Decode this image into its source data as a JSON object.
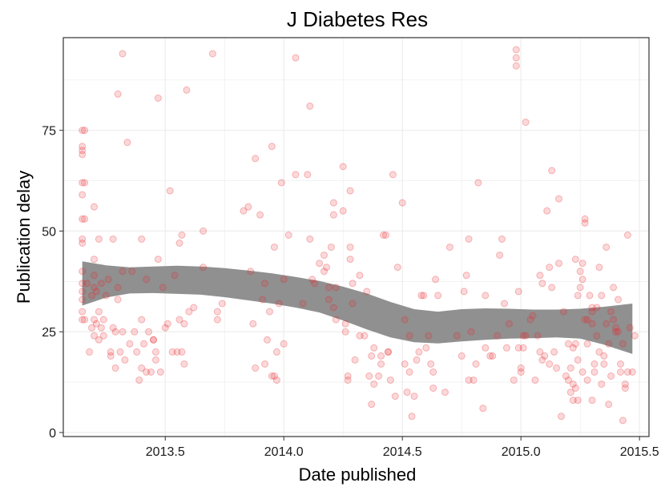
{
  "chart_data": {
    "type": "scatter",
    "title": "J Diabetes Res",
    "xlabel": "Date published",
    "ylabel": "Publication delay",
    "xlim": [
      2013.07,
      2015.54
    ],
    "ylim": [
      -1,
      98
    ],
    "x_ticks": [
      2013.5,
      2014.0,
      2014.5,
      2015.0,
      2015.5
    ],
    "x_tick_labels": [
      "2013.5",
      "2014.0",
      "2014.5",
      "2015.0",
      "2015.5"
    ],
    "y_ticks": [
      0,
      25,
      50,
      75
    ],
    "y_tick_labels": [
      "0",
      "25",
      "50",
      "75"
    ],
    "grid": true,
    "colors": {
      "points": "#e8262b",
      "ribbon": "#8a8a8a",
      "grid": "#ebebeb",
      "panel_border": "#333333"
    },
    "points": [
      [
        2013.15,
        75
      ],
      [
        2013.15,
        71
      ],
      [
        2013.15,
        70
      ],
      [
        2013.15,
        69
      ],
      [
        2013.15,
        62
      ],
      [
        2013.15,
        59
      ],
      [
        2013.15,
        53
      ],
      [
        2013.15,
        48
      ],
      [
        2013.15,
        47
      ],
      [
        2013.15,
        40
      ],
      [
        2013.15,
        37
      ],
      [
        2013.15,
        35
      ],
      [
        2013.15,
        33
      ],
      [
        2013.15,
        30
      ],
      [
        2013.15,
        28
      ],
      [
        2013.16,
        75
      ],
      [
        2013.16,
        62
      ],
      [
        2013.16,
        53
      ],
      [
        2013.16,
        28
      ],
      [
        2013.17,
        37
      ],
      [
        2013.18,
        20
      ],
      [
        2013.19,
        34
      ],
      [
        2013.19,
        26
      ],
      [
        2013.2,
        56
      ],
      [
        2013.2,
        43
      ],
      [
        2013.2,
        39
      ],
      [
        2013.2,
        36
      ],
      [
        2013.2,
        28
      ],
      [
        2013.2,
        24
      ],
      [
        2013.21,
        35
      ],
      [
        2013.21,
        27
      ],
      [
        2013.22,
        48
      ],
      [
        2013.22,
        30
      ],
      [
        2013.22,
        23
      ],
      [
        2013.23,
        37
      ],
      [
        2013.23,
        26
      ],
      [
        2013.24,
        28
      ],
      [
        2013.24,
        24
      ],
      [
        2013.25,
        34
      ],
      [
        2013.26,
        38
      ],
      [
        2013.27,
        20
      ],
      [
        2013.27,
        19
      ],
      [
        2013.28,
        48
      ],
      [
        2013.28,
        26
      ],
      [
        2013.29,
        25
      ],
      [
        2013.29,
        16
      ],
      [
        2013.3,
        84
      ],
      [
        2013.3,
        36
      ],
      [
        2013.3,
        33
      ],
      [
        2013.31,
        20
      ],
      [
        2013.32,
        94
      ],
      [
        2013.32,
        40
      ],
      [
        2013.32,
        25
      ],
      [
        2013.33,
        18
      ],
      [
        2013.34,
        72
      ],
      [
        2013.35,
        22
      ],
      [
        2013.36,
        40
      ],
      [
        2013.37,
        25
      ],
      [
        2013.38,
        20
      ],
      [
        2013.39,
        13
      ],
      [
        2013.4,
        48
      ],
      [
        2013.4,
        28
      ],
      [
        2013.4,
        16
      ],
      [
        2013.41,
        22
      ],
      [
        2013.42,
        38
      ],
      [
        2013.42,
        15
      ],
      [
        2013.43,
        25
      ],
      [
        2013.44,
        15
      ],
      [
        2013.45,
        23
      ],
      [
        2013.45,
        23
      ],
      [
        2013.46,
        18
      ],
      [
        2013.46,
        20
      ],
      [
        2013.47,
        83
      ],
      [
        2013.47,
        43
      ],
      [
        2013.48,
        15
      ],
      [
        2013.49,
        36
      ],
      [
        2013.5,
        26
      ],
      [
        2013.51,
        27
      ],
      [
        2013.52,
        60
      ],
      [
        2013.53,
        20
      ],
      [
        2013.54,
        39
      ],
      [
        2013.55,
        20
      ],
      [
        2013.56,
        28
      ],
      [
        2013.56,
        47
      ],
      [
        2013.57,
        49
      ],
      [
        2013.57,
        20
      ],
      [
        2013.58,
        17
      ],
      [
        2013.58,
        27
      ],
      [
        2013.59,
        85
      ],
      [
        2013.6,
        30
      ],
      [
        2013.62,
        31
      ],
      [
        2013.66,
        50
      ],
      [
        2013.66,
        41
      ],
      [
        2013.7,
        94
      ],
      [
        2013.72,
        28
      ],
      [
        2013.72,
        30
      ],
      [
        2013.74,
        32
      ],
      [
        2013.83,
        55
      ],
      [
        2013.85,
        56
      ],
      [
        2013.86,
        40
      ],
      [
        2013.87,
        27
      ],
      [
        2013.88,
        16
      ],
      [
        2013.88,
        68
      ],
      [
        2013.9,
        54
      ],
      [
        2013.91,
        33
      ],
      [
        2013.92,
        17
      ],
      [
        2013.92,
        37
      ],
      [
        2013.93,
        23
      ],
      [
        2013.94,
        30
      ],
      [
        2013.95,
        71
      ],
      [
        2013.95,
        14
      ],
      [
        2013.96,
        46
      ],
      [
        2013.96,
        14
      ],
      [
        2013.97,
        20
      ],
      [
        2013.97,
        13
      ],
      [
        2013.98,
        32
      ],
      [
        2013.99,
        62
      ],
      [
        2014.0,
        22
      ],
      [
        2014.0,
        38
      ],
      [
        2014.02,
        49
      ],
      [
        2014.05,
        64
      ],
      [
        2014.05,
        93
      ],
      [
        2014.08,
        32
      ],
      [
        2014.1,
        64
      ],
      [
        2014.11,
        81
      ],
      [
        2014.11,
        48
      ],
      [
        2014.12,
        38
      ],
      [
        2014.13,
        37
      ],
      [
        2014.15,
        42
      ],
      [
        2014.17,
        40
      ],
      [
        2014.17,
        44
      ],
      [
        2014.18,
        41
      ],
      [
        2014.19,
        36
      ],
      [
        2014.19,
        33
      ],
      [
        2014.2,
        46
      ],
      [
        2014.21,
        54
      ],
      [
        2014.21,
        57
      ],
      [
        2014.21,
        31
      ],
      [
        2014.22,
        28
      ],
      [
        2014.22,
        36
      ],
      [
        2014.25,
        55
      ],
      [
        2014.25,
        66
      ],
      [
        2014.26,
        27
      ],
      [
        2014.26,
        25
      ],
      [
        2014.27,
        14
      ],
      [
        2014.27,
        13
      ],
      [
        2014.28,
        43
      ],
      [
        2014.28,
        60
      ],
      [
        2014.28,
        46
      ],
      [
        2014.29,
        32
      ],
      [
        2014.29,
        37
      ],
      [
        2014.3,
        18
      ],
      [
        2014.32,
        39
      ],
      [
        2014.32,
        24
      ],
      [
        2014.34,
        24
      ],
      [
        2014.35,
        35
      ],
      [
        2014.36,
        14
      ],
      [
        2014.37,
        19
      ],
      [
        2014.37,
        7
      ],
      [
        2014.38,
        21
      ],
      [
        2014.38,
        12
      ],
      [
        2014.4,
        14
      ],
      [
        2014.41,
        17
      ],
      [
        2014.41,
        19
      ],
      [
        2014.42,
        49
      ],
      [
        2014.43,
        49
      ],
      [
        2014.44,
        20
      ],
      [
        2014.44,
        20
      ],
      [
        2014.45,
        13
      ],
      [
        2014.46,
        64
      ],
      [
        2014.47,
        9
      ],
      [
        2014.48,
        41
      ],
      [
        2014.5,
        57
      ],
      [
        2014.51,
        28
      ],
      [
        2014.51,
        17
      ],
      [
        2014.52,
        10
      ],
      [
        2014.53,
        24
      ],
      [
        2014.53,
        15
      ],
      [
        2014.54,
        4
      ],
      [
        2014.55,
        9
      ],
      [
        2014.56,
        18
      ],
      [
        2014.57,
        20
      ],
      [
        2014.58,
        34
      ],
      [
        2014.59,
        34
      ],
      [
        2014.6,
        21
      ],
      [
        2014.61,
        24
      ],
      [
        2014.62,
        17
      ],
      [
        2014.63,
        15
      ],
      [
        2014.63,
        11
      ],
      [
        2014.64,
        38
      ],
      [
        2014.65,
        34
      ],
      [
        2014.68,
        10
      ],
      [
        2014.7,
        46
      ],
      [
        2014.73,
        24
      ],
      [
        2014.75,
        19
      ],
      [
        2014.76,
        35
      ],
      [
        2014.77,
        39
      ],
      [
        2014.78,
        48
      ],
      [
        2014.78,
        13
      ],
      [
        2014.79,
        25
      ],
      [
        2014.8,
        13
      ],
      [
        2014.81,
        17
      ],
      [
        2014.82,
        62
      ],
      [
        2014.84,
        6
      ],
      [
        2014.85,
        34
      ],
      [
        2014.85,
        21
      ],
      [
        2014.87,
        19
      ],
      [
        2014.88,
        19
      ],
      [
        2014.9,
        24
      ],
      [
        2014.91,
        44
      ],
      [
        2014.92,
        48
      ],
      [
        2014.93,
        32
      ],
      [
        2014.94,
        21
      ],
      [
        2014.95,
        27
      ],
      [
        2014.97,
        13
      ],
      [
        2014.98,
        95
      ],
      [
        2014.98,
        93
      ],
      [
        2014.98,
        91
      ],
      [
        2014.99,
        35
      ],
      [
        2014.99,
        21
      ],
      [
        2015.0,
        16
      ],
      [
        2015.0,
        15
      ],
      [
        2015.01,
        24
      ],
      [
        2015.01,
        21
      ],
      [
        2015.02,
        77
      ],
      [
        2015.02,
        24
      ],
      [
        2015.04,
        28
      ],
      [
        2015.05,
        29
      ],
      [
        2015.06,
        13
      ],
      [
        2015.07,
        24
      ],
      [
        2015.08,
        39
      ],
      [
        2015.08,
        20
      ],
      [
        2015.09,
        18
      ],
      [
        2015.09,
        37
      ],
      [
        2015.1,
        19
      ],
      [
        2015.11,
        55
      ],
      [
        2015.12,
        41
      ],
      [
        2015.12,
        17
      ],
      [
        2015.13,
        36
      ],
      [
        2015.13,
        65
      ],
      [
        2015.14,
        20
      ],
      [
        2015.15,
        16
      ],
      [
        2015.16,
        42
      ],
      [
        2015.16,
        58
      ],
      [
        2015.17,
        4
      ],
      [
        2015.18,
        30
      ],
      [
        2015.19,
        14
      ],
      [
        2015.2,
        22
      ],
      [
        2015.2,
        13
      ],
      [
        2015.21,
        16
      ],
      [
        2015.21,
        10
      ],
      [
        2015.22,
        8
      ],
      [
        2015.22,
        12
      ],
      [
        2015.22,
        21
      ],
      [
        2015.23,
        22
      ],
      [
        2015.23,
        11
      ],
      [
        2015.23,
        43
      ],
      [
        2015.24,
        34
      ],
      [
        2015.24,
        18
      ],
      [
        2015.24,
        8
      ],
      [
        2015.25,
        40
      ],
      [
        2015.25,
        36
      ],
      [
        2015.26,
        38
      ],
      [
        2015.26,
        42
      ],
      [
        2015.26,
        15
      ],
      [
        2015.27,
        52
      ],
      [
        2015.27,
        53
      ],
      [
        2015.27,
        28
      ],
      [
        2015.28,
        28
      ],
      [
        2015.28,
        22
      ],
      [
        2015.28,
        13
      ],
      [
        2015.29,
        34
      ],
      [
        2015.3,
        31
      ],
      [
        2015.3,
        30
      ],
      [
        2015.3,
        27
      ],
      [
        2015.3,
        8
      ],
      [
        2015.31,
        17
      ],
      [
        2015.31,
        15
      ],
      [
        2015.32,
        31
      ],
      [
        2015.32,
        24
      ],
      [
        2015.33,
        20
      ],
      [
        2015.33,
        41
      ],
      [
        2015.34,
        34
      ],
      [
        2015.34,
        12
      ],
      [
        2015.35,
        19
      ],
      [
        2015.35,
        17
      ],
      [
        2015.36,
        46
      ],
      [
        2015.36,
        27
      ],
      [
        2015.37,
        7
      ],
      [
        2015.37,
        22
      ],
      [
        2015.38,
        14
      ],
      [
        2015.38,
        30
      ],
      [
        2015.39,
        36
      ],
      [
        2015.39,
        28
      ],
      [
        2015.4,
        25
      ],
      [
        2015.4,
        26
      ],
      [
        2015.41,
        33
      ],
      [
        2015.41,
        25
      ],
      [
        2015.42,
        17
      ],
      [
        2015.42,
        15
      ],
      [
        2015.43,
        22
      ],
      [
        2015.43,
        3
      ],
      [
        2015.44,
        11
      ],
      [
        2015.44,
        12
      ],
      [
        2015.45,
        15
      ],
      [
        2015.45,
        49
      ],
      [
        2015.46,
        26
      ],
      [
        2015.47,
        15
      ],
      [
        2015.48,
        24
      ]
    ],
    "smooth": {
      "x": [
        2013.15,
        2013.25,
        2013.35,
        2013.45,
        2013.55,
        2013.65,
        2013.75,
        2013.85,
        2013.95,
        2014.05,
        2014.15,
        2014.25,
        2014.35,
        2014.45,
        2014.55,
        2014.65,
        2014.75,
        2014.85,
        2014.95,
        2015.05,
        2015.15,
        2015.25,
        2015.35,
        2015.47
      ],
      "upper": [
        42.5,
        41.5,
        41.0,
        41.2,
        41.4,
        41.2,
        40.8,
        40.2,
        39.5,
        38.6,
        37.6,
        36.2,
        34.5,
        32.4,
        30.6,
        30.0,
        30.6,
        30.8,
        30.7,
        30.5,
        30.5,
        30.7,
        31.2,
        32.0
      ],
      "lower": [
        31.5,
        33.5,
        34.5,
        34.6,
        34.4,
        34.2,
        33.6,
        32.8,
        32.0,
        31.0,
        29.8,
        27.8,
        25.6,
        23.6,
        22.4,
        22.1,
        22.6,
        23.0,
        23.3,
        23.4,
        23.6,
        23.3,
        21.8,
        19.5
      ]
    }
  }
}
